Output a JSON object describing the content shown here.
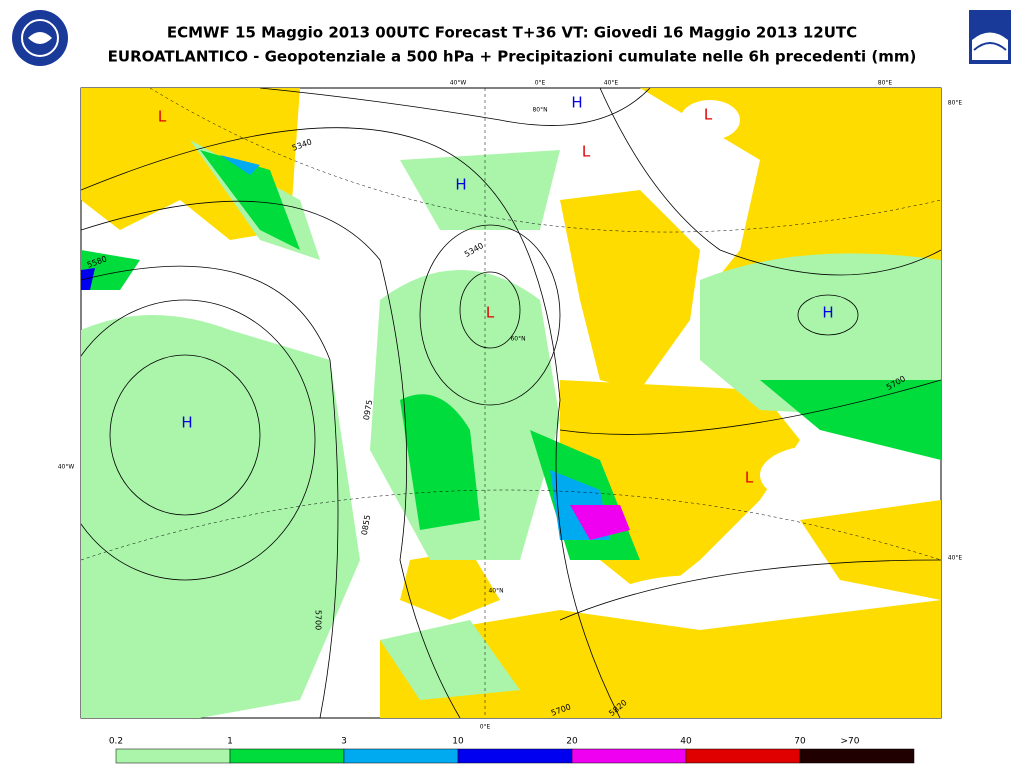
{
  "header": {
    "title": "ECMWF 15 Maggio 2013 00UTC Forecast T+36 VT: Giovedi 16 Maggio 2013 12UTC",
    "subtitle": "EUROATLANTICO - Geopotenziale a 500 hPa + Precipitazioni cumulate nelle 6h precedenti (mm)"
  },
  "map": {
    "graticule_labels": [
      "40°W",
      "0°E",
      "40°E",
      "80°E",
      "80°E",
      "40°W",
      "40°E",
      "0°E",
      "80°N",
      "60°N",
      "40°N"
    ],
    "pressure_centers": [
      {
        "label": "L",
        "color": "#e00000"
      },
      {
        "label": "H",
        "color": "#0000e0"
      },
      {
        "label": "L",
        "color": "#e00000"
      },
      {
        "label": "L",
        "color": "#e00000"
      },
      {
        "label": "H",
        "color": "#0000e0"
      },
      {
        "label": "L",
        "color": "#e00000"
      },
      {
        "label": "H",
        "color": "#0000e0"
      },
      {
        "label": "H",
        "color": "#0000e0"
      },
      {
        "label": "L",
        "color": "#e00000"
      }
    ],
    "contour_labels": [
      "5340",
      "5340",
      "5580",
      "5700",
      "5700",
      "5700",
      "5820",
      "0975",
      "0855"
    ]
  },
  "legend": {
    "thresholds": [
      "0.2",
      "1",
      "3",
      "10",
      "20",
      "40",
      "70",
      ">70"
    ],
    "colors": [
      "#aaf5aa",
      "#00dc3c",
      "#00aaf0",
      "#0000f0",
      "#f000f0",
      "#e00000",
      "#200000"
    ]
  }
}
